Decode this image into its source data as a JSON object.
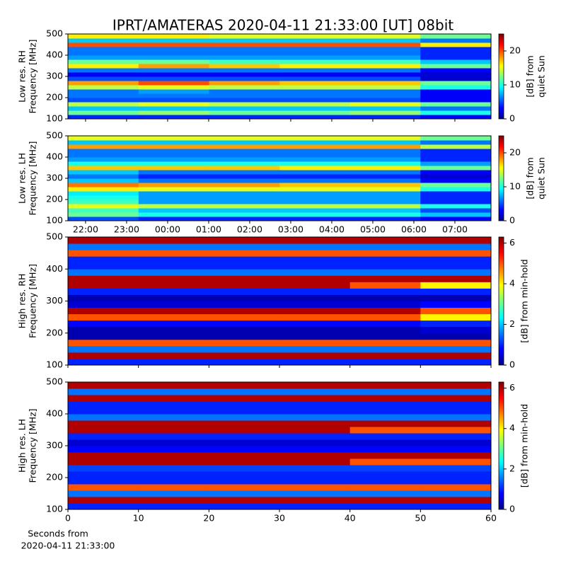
{
  "title": "IPRT/AMATERAS 2020-04-11 21:33:00 [UT]   08bit",
  "chart_data": [
    {
      "type": "heatmap",
      "colormap": "jet",
      "ylabel": [
        "Low res. RH",
        "Frequency [MHz]"
      ],
      "xlim": [
        21.57,
        31.88
      ],
      "ylim": [
        100,
        500
      ],
      "yticks": [
        100,
        200,
        300,
        400,
        500
      ],
      "x": [
        22.43,
        24.15,
        25.87,
        27.59,
        29.3,
        31.02
      ],
      "y": [
        110,
        130,
        150,
        170,
        190,
        210,
        230,
        250,
        270,
        290,
        310,
        330,
        350,
        370,
        390,
        410,
        430,
        450,
        470,
        490
      ],
      "values": [
        [
          4,
          4,
          4,
          4,
          4,
          3
        ],
        [
          12,
          13,
          12,
          12,
          13,
          10
        ],
        [
          8,
          8,
          8,
          8,
          8,
          6
        ],
        [
          14,
          15,
          14,
          14,
          15,
          12
        ],
        [
          5,
          5,
          5,
          5,
          5,
          3
        ],
        [
          6,
          6,
          6,
          6,
          6,
          3
        ],
        [
          6,
          7,
          6,
          6,
          6,
          3
        ],
        [
          14,
          15,
          14,
          14,
          14,
          10
        ],
        [
          18,
          20,
          18,
          17,
          17,
          12
        ],
        [
          5,
          5,
          5,
          5,
          5,
          2
        ],
        [
          3,
          3,
          3,
          3,
          3,
          2
        ],
        [
          6,
          6,
          6,
          6,
          6,
          3
        ],
        [
          16,
          18,
          17,
          16,
          16,
          12
        ],
        [
          12,
          12,
          11,
          11,
          11,
          8
        ],
        [
          7,
          7,
          7,
          7,
          7,
          4
        ],
        [
          6,
          6,
          6,
          6,
          6,
          4
        ],
        [
          6,
          6,
          6,
          6,
          6,
          4
        ],
        [
          20,
          20,
          20,
          20,
          20,
          16
        ],
        [
          8,
          8,
          8,
          8,
          8,
          6
        ],
        [
          16,
          16,
          15,
          15,
          15,
          12
        ]
      ],
      "colorbar": {
        "lim": [
          0,
          25
        ],
        "ticks": [
          0,
          10,
          20
        ],
        "label": [
          "[dB] from",
          "quiet Sun"
        ]
      }
    },
    {
      "type": "heatmap",
      "colormap": "jet",
      "ylabel": [
        "Low res. LH",
        "Frequency [MHz]"
      ],
      "xlim": [
        21.57,
        31.88
      ],
      "ylim": [
        100,
        500
      ],
      "yticks": [
        100,
        200,
        300,
        400,
        500
      ],
      "xticks": [
        {
          "value": 22,
          "label": "22:00"
        },
        {
          "value": 23,
          "label": "23:00"
        },
        {
          "value": 24,
          "label": "00:00"
        },
        {
          "value": 25,
          "label": "01:00"
        },
        {
          "value": 26,
          "label": "02:00"
        },
        {
          "value": 27,
          "label": "03:00"
        },
        {
          "value": 28,
          "label": "04:00"
        },
        {
          "value": 29,
          "label": "05:00"
        },
        {
          "value": 30,
          "label": "06:00"
        },
        {
          "value": 31,
          "label": "07:00"
        }
      ],
      "x": [
        22.43,
        24.15,
        25.87,
        27.59,
        29.3,
        31.02
      ],
      "y": [
        110,
        130,
        150,
        170,
        190,
        210,
        230,
        250,
        270,
        290,
        310,
        330,
        350,
        370,
        390,
        410,
        430,
        450,
        470,
        490
      ],
      "values": [
        [
          5,
          4,
          4,
          4,
          4,
          3
        ],
        [
          12,
          10,
          10,
          10,
          10,
          8
        ],
        [
          11,
          8,
          8,
          8,
          8,
          5
        ],
        [
          15,
          14,
          14,
          14,
          14,
          10
        ],
        [
          11,
          7,
          7,
          7,
          7,
          4
        ],
        [
          10,
          7,
          7,
          7,
          7,
          4
        ],
        [
          9,
          7,
          7,
          7,
          7,
          4
        ],
        [
          16,
          15,
          15,
          15,
          15,
          10
        ],
        [
          19,
          18,
          18,
          17,
          17,
          12
        ],
        [
          8,
          6,
          6,
          6,
          6,
          3
        ],
        [
          6,
          4,
          4,
          4,
          4,
          2
        ],
        [
          8,
          6,
          6,
          6,
          6,
          3
        ],
        [
          17,
          17,
          17,
          16,
          16,
          12
        ],
        [
          10,
          10,
          10,
          10,
          10,
          7
        ],
        [
          7,
          7,
          7,
          7,
          7,
          4
        ],
        [
          6,
          6,
          6,
          6,
          6,
          4
        ],
        [
          6,
          6,
          6,
          6,
          6,
          4
        ],
        [
          18,
          18,
          18,
          18,
          18,
          14
        ],
        [
          8,
          8,
          8,
          8,
          8,
          6
        ],
        [
          15,
          15,
          15,
          15,
          15,
          12
        ]
      ],
      "colorbar": {
        "lim": [
          0,
          25
        ],
        "ticks": [
          0,
          10,
          20
        ],
        "label": [
          "[dB] from",
          "quiet Sun"
        ]
      }
    },
    {
      "type": "heatmap",
      "colormap": "jet",
      "ylabel": [
        "High res. RH",
        "Frequency [MHz]"
      ],
      "xlim": [
        0,
        60
      ],
      "ylim": [
        100,
        500
      ],
      "yticks": [
        100,
        200,
        300,
        400,
        500
      ],
      "x": [
        5,
        15,
        25,
        35,
        45,
        55
      ],
      "y": [
        110,
        130,
        150,
        170,
        190,
        210,
        230,
        250,
        270,
        290,
        310,
        330,
        350,
        370,
        390,
        410,
        430,
        450,
        470,
        490
      ],
      "values": [
        [
          1,
          1,
          1,
          1,
          1,
          1
        ],
        [
          6,
          6,
          6,
          6,
          6,
          6
        ],
        [
          1.5,
          1.5,
          1.5,
          1.5,
          1.5,
          1.5
        ],
        [
          5,
          5,
          5,
          5,
          5,
          5
        ],
        [
          0.3,
          0.3,
          0.3,
          0.3,
          0.3,
          0.3
        ],
        [
          0.3,
          0.3,
          0.3,
          0.3,
          0.3,
          0.5
        ],
        [
          0.8,
          0.8,
          0.8,
          0.8,
          0.8,
          1
        ],
        [
          5,
          5,
          5,
          5,
          5,
          4
        ],
        [
          6,
          6,
          6,
          6,
          6,
          5
        ],
        [
          0.5,
          0.5,
          0.5,
          0.5,
          0.5,
          0.8
        ],
        [
          0.3,
          0.3,
          0.3,
          0.3,
          0.3,
          0.3
        ],
        [
          1,
          1,
          1,
          1,
          1,
          1
        ],
        [
          6,
          6,
          6,
          6,
          5,
          4
        ],
        [
          6,
          6,
          6,
          6,
          6,
          6
        ],
        [
          1.5,
          1.5,
          1.5,
          1.5,
          1.5,
          1.5
        ],
        [
          1,
          1,
          1,
          1,
          1,
          1
        ],
        [
          1,
          1,
          1,
          1,
          1,
          1
        ],
        [
          5,
          5,
          5,
          5,
          5,
          5
        ],
        [
          1.5,
          1.5,
          1.5,
          1.5,
          1.5,
          1.5
        ],
        [
          6,
          6,
          6,
          6,
          6,
          6
        ]
      ],
      "colorbar": {
        "lim": [
          0,
          6.3
        ],
        "ticks": [
          0,
          2,
          4,
          6
        ],
        "label": [
          "[dB] from min-hold"
        ]
      }
    },
    {
      "type": "heatmap",
      "colormap": "jet",
      "ylabel": [
        "High res. LH",
        "Frequency [MHz]"
      ],
      "xlabel": [
        "Seconds from",
        "2020-04-11 21:33:00"
      ],
      "xlim": [
        0,
        60
      ],
      "ylim": [
        100,
        500
      ],
      "yticks": [
        100,
        200,
        300,
        400,
        500
      ],
      "xticks": [
        0,
        10,
        20,
        30,
        40,
        50,
        60
      ],
      "x": [
        5,
        15,
        25,
        35,
        45,
        55
      ],
      "y": [
        110,
        130,
        150,
        170,
        190,
        210,
        230,
        250,
        270,
        290,
        310,
        330,
        350,
        370,
        390,
        410,
        430,
        450,
        470,
        490
      ],
      "values": [
        [
          1,
          1,
          1,
          1,
          1,
          1
        ],
        [
          6,
          6,
          6,
          6,
          6,
          6
        ],
        [
          1.5,
          1.5,
          1.5,
          1.5,
          1.5,
          1.5
        ],
        [
          5,
          5,
          5,
          5,
          5,
          5
        ],
        [
          1,
          1,
          1,
          1,
          1,
          1
        ],
        [
          1,
          1,
          1,
          1,
          1,
          1
        ],
        [
          1.2,
          1.2,
          1.2,
          1.2,
          1.2,
          1.2
        ],
        [
          6,
          6,
          6,
          6,
          5,
          5
        ],
        [
          6,
          6,
          6,
          6,
          6,
          6
        ],
        [
          0.8,
          0.8,
          0.8,
          0.8,
          0.8,
          0.8
        ],
        [
          0.5,
          0.5,
          0.5,
          0.5,
          0.5,
          0.5
        ],
        [
          1,
          1,
          1,
          1,
          1,
          1
        ],
        [
          6,
          6,
          6,
          6,
          5,
          5
        ],
        [
          6,
          6,
          6,
          6,
          6,
          6
        ],
        [
          1.5,
          1.5,
          1.5,
          1.5,
          1.5,
          1.5
        ],
        [
          1,
          1,
          1,
          1,
          1,
          1
        ],
        [
          1,
          1,
          1,
          1,
          1,
          1
        ],
        [
          6,
          6,
          6,
          6,
          6,
          6
        ],
        [
          1.5,
          1.5,
          1.5,
          1.5,
          1.5,
          1.5
        ],
        [
          6,
          6,
          6,
          6,
          6,
          6
        ]
      ],
      "colorbar": {
        "lim": [
          0,
          6.3
        ],
        "ticks": [
          0,
          2,
          4,
          6
        ],
        "label": [
          "[dB] from min-hold"
        ]
      }
    }
  ]
}
